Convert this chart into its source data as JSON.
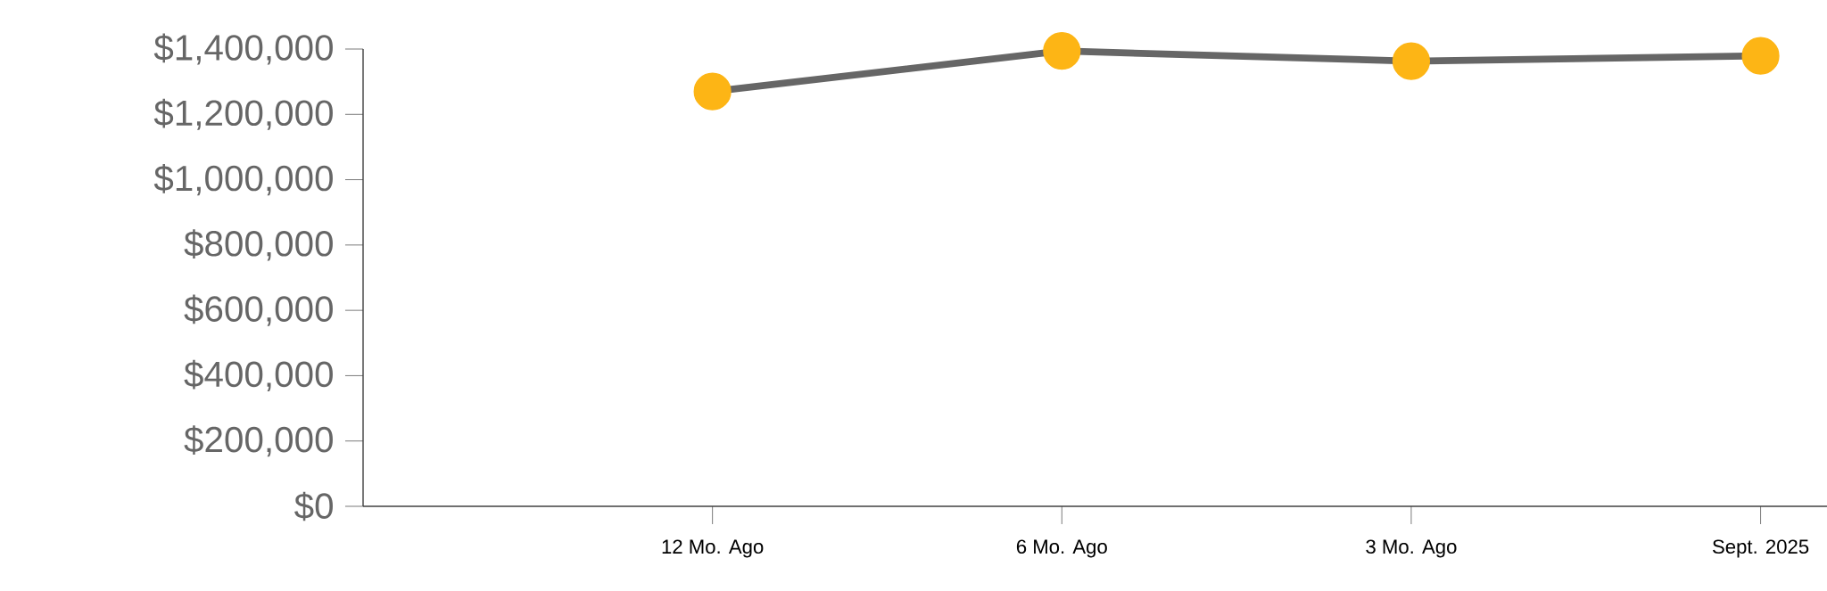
{
  "chart_data": {
    "type": "line",
    "categories": [
      "12 Mo. Ago",
      "6 Mo. Ago",
      "3 Mo. Ago",
      "Sept. 2025"
    ],
    "series": [
      {
        "color": "#666666",
        "colors": [
          "#fdb515",
          "#fdb515",
          "#fdb515",
          "#fdb515"
        ],
        "values": [
          1270000,
          1394000,
          1363000,
          1379000
        ]
      }
    ],
    "ylim": [
      0,
      1400000
    ],
    "yticks": [
      {
        "value": 0,
        "label": "$0"
      },
      {
        "value": 200000,
        "label": "$200,000"
      },
      {
        "value": 400000,
        "label": "$400,000"
      },
      {
        "value": 600000,
        "label": "$600,000"
      },
      {
        "value": 800000,
        "label": "$800,000"
      },
      {
        "value": 1000000,
        "label": "$1,000,000"
      },
      {
        "value": 1200000,
        "label": "$1,200,000"
      },
      {
        "value": 1400000,
        "label": "$1,400,000"
      }
    ],
    "marker": "circle",
    "line_style": "solid",
    "grid": false
  }
}
